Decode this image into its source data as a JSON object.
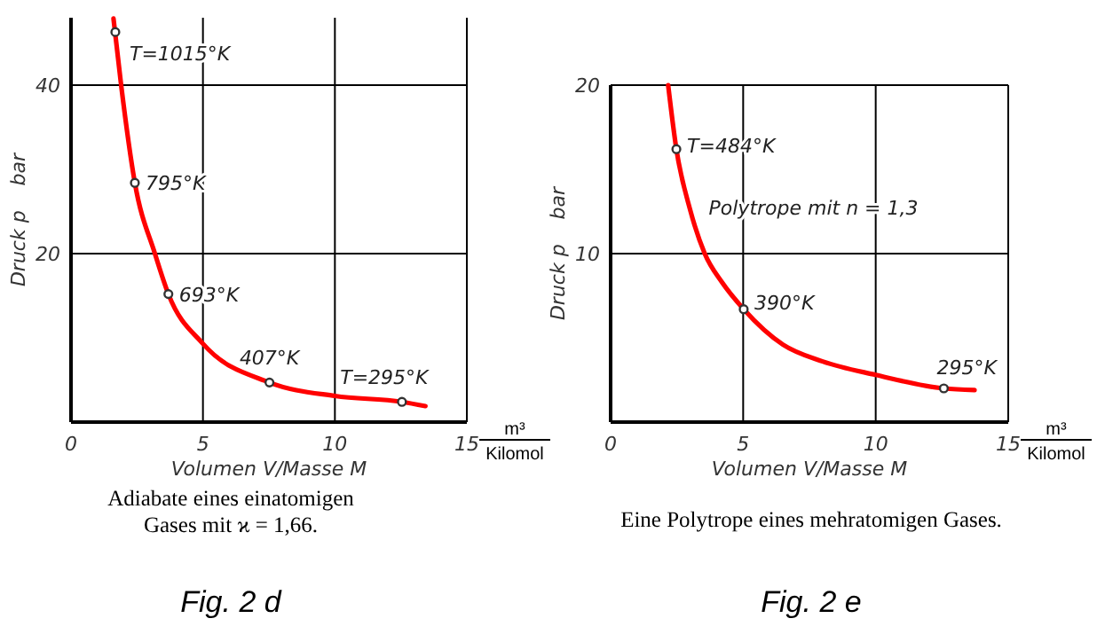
{
  "chart_data": [
    {
      "type": "line",
      "title": "Fig. 2 d",
      "subtitle": "Adiabate eines einatomigen Gases mit ϰ = 1,66.",
      "xlabel": "Volumen V/Masse M",
      "ylabel": "Druck p    bar",
      "xlim": [
        0,
        15
      ],
      "ylim": [
        0,
        48
      ],
      "xticks": [
        0,
        5,
        10,
        15
      ],
      "yticks": [
        20,
        40
      ],
      "grid": true,
      "series": [
        {
          "type": "line",
          "color": "#ff0000",
          "marker": "none",
          "x": [
            1.61,
            1.9,
            2.42,
            3.18,
            3.69,
            5,
            7.52,
            10,
            12.54,
            13.43
          ],
          "values": [
            47.9,
            40,
            28.4,
            20,
            15.2,
            9.3,
            4.7,
            3.1,
            2.4,
            1.9
          ]
        },
        {
          "type": "scatter",
          "color": "#333333",
          "marker": "circle",
          "x": [
            1.68,
            2.42,
            3.69,
            7.52,
            12.54
          ],
          "values": [
            46.3,
            28.4,
            15.2,
            4.7,
            2.4
          ]
        }
      ],
      "annotations": [
        "m³",
        "Kilomol",
        {
          "text": "T=1015°K",
          "x": 1.68,
          "y": 46.3
        },
        {
          "text": "795°K",
          "x": 2.42,
          "y": 28.4
        },
        {
          "text": "693°K",
          "x": 3.69,
          "y": 15.2
        },
        {
          "text": "407°K",
          "x": 7.52,
          "y": 4.7
        },
        {
          "text": "T=295°K",
          "x": 12.54,
          "y": 2.4
        }
      ]
    },
    {
      "type": "line",
      "title": "Fig. 2 e",
      "subtitle": "Eine Polytrope eines mehratomigen Gases.",
      "xlabel": "Volumen V/Masse M",
      "ylabel": "Druck p    bar",
      "xlim": [
        0,
        15
      ],
      "ylim": [
        0,
        20
      ],
      "xticks": [
        0,
        5,
        10,
        15
      ],
      "yticks": [
        10,
        20
      ],
      "grid": true,
      "series": [
        {
          "type": "line",
          "color": "#ff0000",
          "marker": "none",
          "x": [
            2.17,
            2.48,
            3.0,
            3.55,
            4.2,
            5.02,
            6.5,
            8,
            10,
            12.57,
            13.73
          ],
          "values": [
            20,
            16.2,
            12.6,
            10,
            8.3,
            6.7,
            4.6,
            3.6,
            2.8,
            2.0,
            1.9
          ]
        },
        {
          "type": "scatter",
          "color": "#333333",
          "marker": "circle",
          "x": [
            2.48,
            5.02,
            12.57
          ],
          "values": [
            16.2,
            6.7,
            2.0
          ]
        }
      ],
      "annotations": [
        "m³",
        "Kilomol",
        {
          "text": "T=484°K",
          "x": 2.48,
          "y": 16.2
        },
        {
          "text": "Polytrope mit n = 1,3",
          "x": 3.3,
          "y": 12.3
        },
        {
          "text": "390°K",
          "x": 5.02,
          "y": 6.7
        },
        {
          "text": "295°K",
          "x": 12.57,
          "y": 2.0
        }
      ]
    }
  ]
}
